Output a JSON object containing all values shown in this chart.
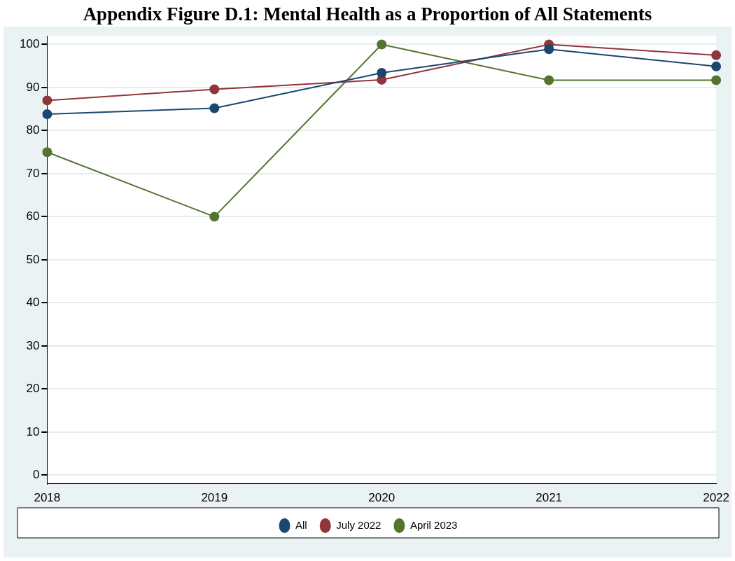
{
  "chart_data": {
    "type": "line",
    "title": "Appendix Figure D.1: Mental Health as a Proportion of All Statements",
    "categories": [
      "2018",
      "2019",
      "2020",
      "2021",
      "2022"
    ],
    "series": [
      {
        "name": "All",
        "color": "#1a476f",
        "values": [
          83.8,
          85.2,
          93.4,
          98.9,
          94.9
        ]
      },
      {
        "name": "July 2022",
        "color": "#90353b",
        "values": [
          87,
          89.6,
          91.8,
          100,
          97.5
        ]
      },
      {
        "name": "April 2023",
        "color": "#55752f",
        "values": [
          75,
          60,
          100,
          91.7,
          91.7
        ]
      }
    ],
    "ylim": [
      -2,
      102
    ],
    "yticks": [
      0,
      10,
      20,
      30,
      40,
      50,
      60,
      70,
      80,
      90,
      100
    ],
    "grid": "y",
    "legend": "bottom",
    "marker": "circle",
    "line_style": "solid"
  }
}
